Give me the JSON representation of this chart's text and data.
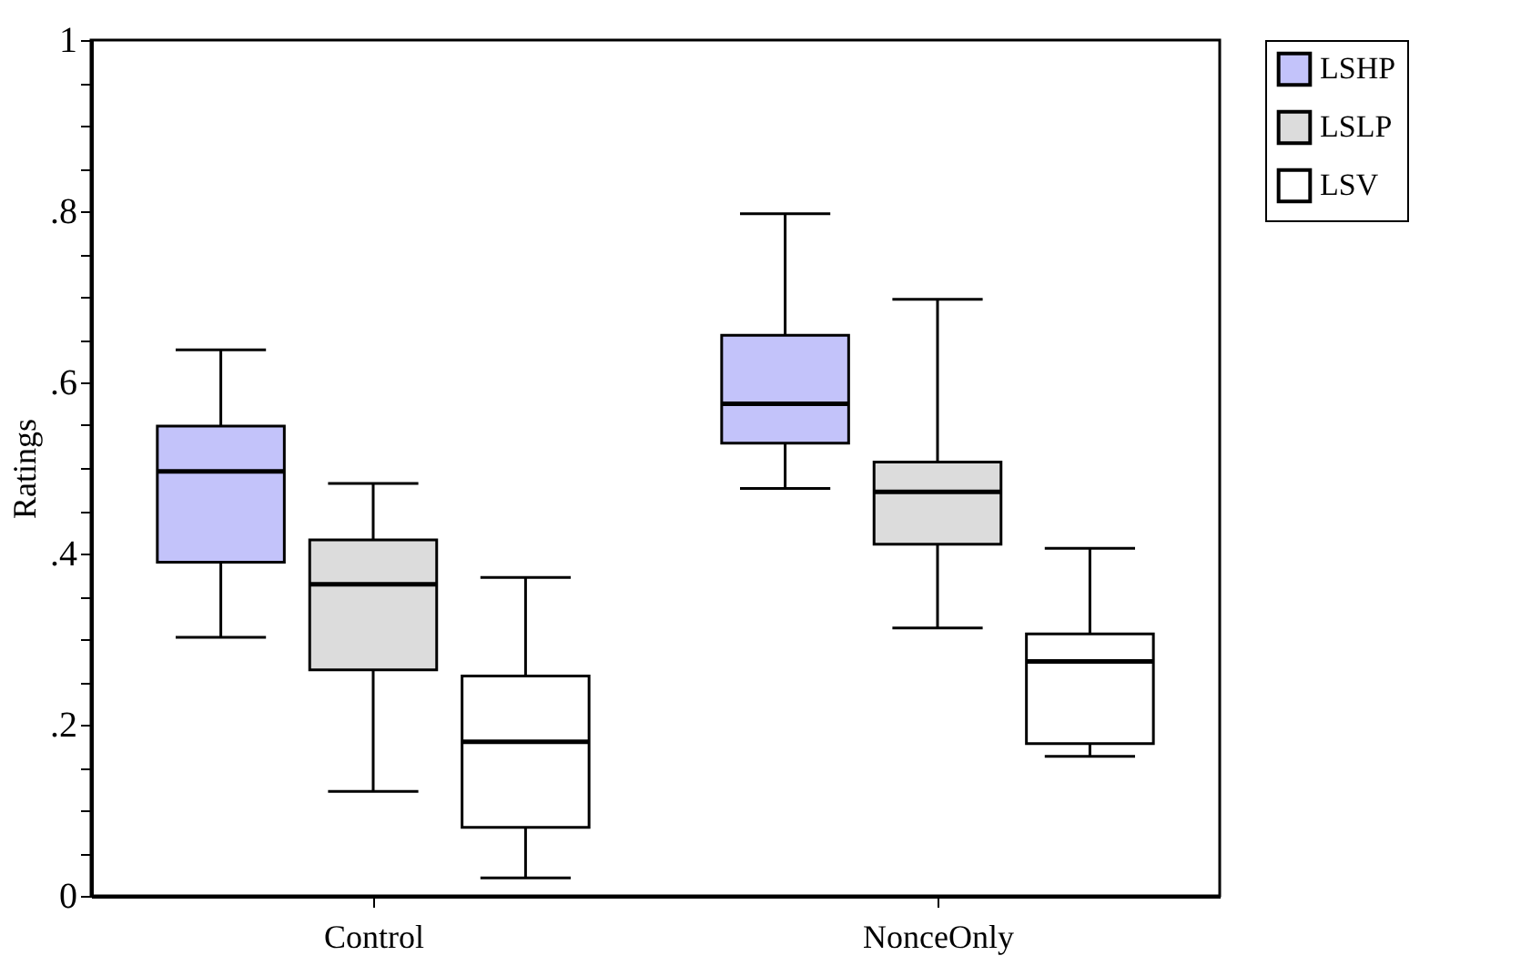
{
  "chart_data": {
    "type": "box",
    "ylabel": "Ratings",
    "categories": [
      "Control",
      "NonceOnly"
    ],
    "series": [
      {
        "name": "LSHP",
        "color": "#c3c3fa",
        "boxes": [
          {
            "low": 0.302,
            "q1": 0.39,
            "median": 0.496,
            "q3": 0.549,
            "high": 0.638
          },
          {
            "low": 0.476,
            "q1": 0.529,
            "median": 0.575,
            "q3": 0.655,
            "high": 0.797
          }
        ]
      },
      {
        "name": "LSLP",
        "color": "#dcdcdc",
        "boxes": [
          {
            "low": 0.122,
            "q1": 0.264,
            "median": 0.364,
            "q3": 0.416,
            "high": 0.482
          },
          {
            "low": 0.313,
            "q1": 0.411,
            "median": 0.472,
            "q3": 0.507,
            "high": 0.697
          }
        ]
      },
      {
        "name": "LSV",
        "color": "#ffffff",
        "boxes": [
          {
            "low": 0.021,
            "q1": 0.08,
            "median": 0.18,
            "q3": 0.257,
            "high": 0.372
          },
          {
            "low": 0.163,
            "q1": 0.178,
            "median": 0.274,
            "q3": 0.306,
            "high": 0.406
          }
        ]
      }
    ],
    "ylim": [
      0,
      1
    ],
    "yticks": [
      0,
      {
        "value": 0.05,
        "label": null
      },
      {
        "value": 0.1,
        "label": null
      },
      {
        "value": 0.15,
        "label": null
      },
      {
        "value": 0.2,
        "label": ".2"
      },
      {
        "value": 0.25,
        "label": null
      },
      {
        "value": 0.3,
        "label": null
      },
      {
        "value": 0.35,
        "label": null
      },
      {
        "value": 0.4,
        "label": ".4"
      },
      {
        "value": 0.45,
        "label": null
      },
      {
        "value": 0.5,
        "label": null
      },
      {
        "value": 0.55,
        "label": null
      },
      {
        "value": 0.6,
        "label": ".6"
      },
      {
        "value": 0.65,
        "label": null
      },
      {
        "value": 0.7,
        "label": null
      },
      {
        "value": 0.75,
        "label": null
      },
      {
        "value": 0.8,
        "label": ".8"
      },
      {
        "value": 0.85,
        "label": null
      },
      {
        "value": 0.9,
        "label": null
      },
      {
        "value": 0.95,
        "label": null
      },
      1
    ],
    "grid": false,
    "legend": "right"
  }
}
